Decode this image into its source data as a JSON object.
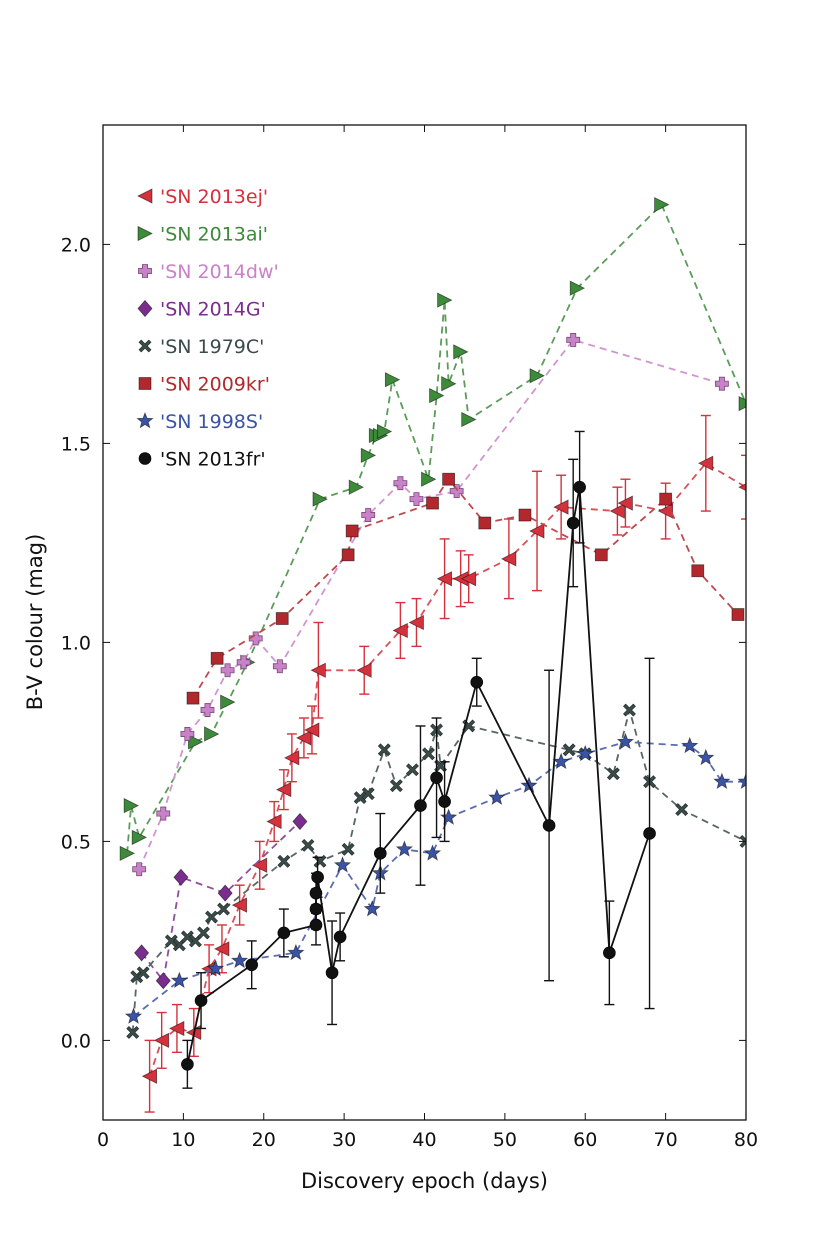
{
  "chart_data": {
    "type": "scatter",
    "title": "",
    "xlabel": "Discovery epoch (days)",
    "ylabel": "B-V colour (mag)",
    "xlim": [
      0,
      80
    ],
    "ylim": [
      -0.2,
      2.3
    ],
    "xticks": [
      "0",
      "10",
      "20",
      "30",
      "40",
      "50",
      "60",
      "70",
      "80"
    ],
    "yticks": [
      "0.0",
      "0.5",
      "1.0",
      "1.5",
      "2.0"
    ],
    "legend_position": "top-left",
    "series": [
      {
        "name": "'SN 2013ej'",
        "color": "#d4313c",
        "marker": "triangle-left",
        "line": "dashed",
        "x": [
          5.8,
          7.3,
          9.2,
          11.3,
          13.2,
          14.8,
          17.0,
          19.5,
          21.3,
          22.5,
          23.5,
          25.0,
          26.0,
          26.8,
          32.5,
          37.0,
          39.0,
          42.5,
          44.5,
          45.5,
          50.5,
          54.0,
          57.0,
          64.0,
          65.0,
          70.0,
          75.0,
          80.0
        ],
        "y": [
          -0.09,
          0.0,
          0.03,
          0.02,
          0.18,
          0.23,
          0.34,
          0.44,
          0.55,
          0.63,
          0.71,
          0.76,
          0.78,
          0.93,
          0.93,
          1.03,
          1.05,
          1.16,
          1.16,
          1.16,
          1.21,
          1.28,
          1.34,
          1.33,
          1.35,
          1.33,
          1.45,
          1.39
        ],
        "err": [
          0.09,
          0.07,
          0.06,
          0.06,
          0.06,
          0.06,
          0.05,
          0.06,
          0.05,
          0.05,
          0.06,
          0.05,
          0.06,
          0.12,
          0.06,
          0.07,
          0.06,
          0.1,
          0.07,
          0.06,
          0.1,
          0.15,
          0.08,
          0.06,
          0.06,
          0.07,
          0.12,
          0.08
        ]
      },
      {
        "name": "'SN 2013ai'",
        "color": "#3e8a3b",
        "marker": "triangle-right",
        "line": "dashed",
        "x": [
          3.0,
          3.5,
          4.5,
          11.5,
          13.5,
          15.5,
          18.0,
          27.0,
          31.5,
          33.0,
          34.0,
          34.5,
          35.0,
          36.0,
          40.5,
          41.5,
          42.5,
          43.0,
          44.5,
          45.5,
          54.0,
          59.0,
          69.5,
          80.0
        ],
        "y": [
          0.47,
          0.59,
          0.51,
          0.75,
          0.77,
          0.85,
          0.95,
          1.36,
          1.39,
          1.47,
          1.52,
          1.52,
          1.53,
          1.66,
          1.41,
          1.62,
          1.86,
          1.65,
          1.73,
          1.56,
          1.67,
          1.89,
          2.1,
          1.6
        ]
      },
      {
        "name": "'SN 2014dw'",
        "color": "#c882c8",
        "marker": "plus",
        "line": "dashed",
        "x": [
          4.5,
          7.5,
          10.5,
          13.0,
          15.5,
          17.5,
          19.0,
          22.0,
          33.0,
          37.0,
          39.0,
          44.0,
          58.5,
          77.0
        ],
        "y": [
          0.43,
          0.57,
          0.77,
          0.83,
          0.93,
          0.95,
          1.01,
          0.94,
          1.32,
          1.4,
          1.36,
          1.38,
          1.76,
          1.65
        ]
      },
      {
        "name": "'SN 2014G'",
        "color": "#7b2d8e",
        "marker": "diamond",
        "line": "dashed",
        "x": [
          4.8,
          7.5,
          9.7,
          15.2,
          24.5
        ],
        "y": [
          0.22,
          0.15,
          0.41,
          0.37,
          0.55
        ]
      },
      {
        "name": "'SN 1979C'",
        "color": "#3a4b48",
        "marker": "x",
        "line": "dashed",
        "x": [
          3.7,
          4.2,
          5.0,
          8.5,
          9.5,
          10.5,
          11.5,
          12.5,
          13.5,
          15.0,
          22.5,
          25.5,
          27.0,
          30.5,
          32.0,
          33.0,
          35.0,
          36.5,
          38.5,
          40.5,
          41.5,
          42.0,
          45.5,
          58.0,
          60.0,
          63.5,
          65.5,
          68.0,
          72.0,
          80.0
        ],
        "y": [
          0.02,
          0.16,
          0.17,
          0.25,
          0.24,
          0.26,
          0.25,
          0.27,
          0.31,
          0.33,
          0.45,
          0.49,
          0.45,
          0.48,
          0.61,
          0.62,
          0.73,
          0.64,
          0.68,
          0.72,
          0.78,
          0.69,
          0.79,
          0.73,
          0.72,
          0.67,
          0.83,
          0.65,
          0.58,
          0.5
        ]
      },
      {
        "name": "'SN 2009kr'",
        "color": "#b3282d",
        "marker": "square",
        "line": "dashed",
        "x": [
          11.2,
          14.2,
          22.3,
          30.5,
          31.0,
          41.0,
          43.0,
          47.5,
          52.5,
          62.0,
          70.0,
          74.0,
          79.0
        ],
        "y": [
          0.86,
          0.96,
          1.06,
          1.22,
          1.28,
          1.35,
          1.41,
          1.3,
          1.32,
          1.22,
          1.36,
          1.18,
          1.07
        ]
      },
      {
        "name": "'SN 1998S'",
        "color": "#3b53a4",
        "marker": "star",
        "line": "dashed",
        "x": [
          3.8,
          9.5,
          14.0,
          17.0,
          24.0,
          29.8,
          33.5,
          34.5,
          37.5,
          41.0,
          43.0,
          49.0,
          53.0,
          57.0,
          60.0,
          65.0,
          73.0,
          75.0,
          77.0,
          80.0
        ],
        "y": [
          0.06,
          0.15,
          0.18,
          0.2,
          0.22,
          0.44,
          0.33,
          0.42,
          0.48,
          0.47,
          0.56,
          0.61,
          0.64,
          0.7,
          0.72,
          0.75,
          0.74,
          0.71,
          0.65,
          0.65
        ]
      },
      {
        "name": "'SN 2013fr'",
        "color": "#111111",
        "marker": "circle",
        "line": "solid",
        "x": [
          10.5,
          12.2,
          18.5,
          22.5,
          26.5,
          26.5,
          26.5,
          26.7,
          28.5,
          29.5,
          34.5,
          39.5,
          41.5,
          42.5,
          46.5,
          55.5,
          58.5,
          59.3,
          63.0,
          68.0
        ],
        "y": [
          -0.06,
          0.1,
          0.19,
          0.27,
          0.29,
          0.33,
          0.37,
          0.41,
          0.17,
          0.26,
          0.47,
          0.59,
          0.66,
          0.6,
          0.9,
          0.54,
          1.3,
          1.39,
          0.22,
          0.52
        ],
        "err": [
          0.06,
          0.07,
          0.06,
          0.06,
          0.05,
          0.05,
          0.05,
          0.05,
          0.13,
          0.06,
          0.1,
          0.2,
          0.15,
          0.1,
          0.06,
          0.39,
          0.16,
          0.14,
          0.13,
          0.44
        ]
      }
    ]
  }
}
